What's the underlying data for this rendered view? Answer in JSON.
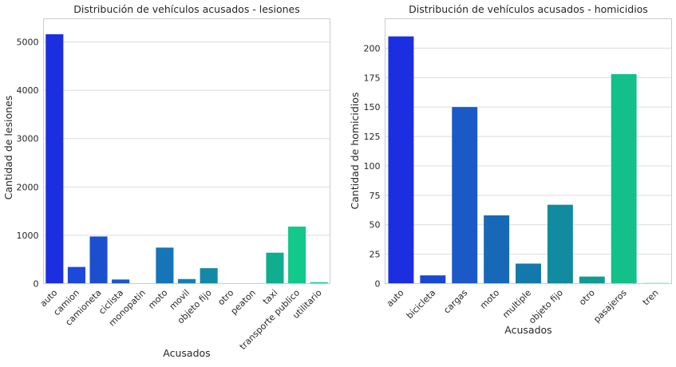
{
  "chart_data": [
    {
      "type": "bar",
      "title": "Distribución de vehículos acusados - lesiones",
      "xlabel": "Acusados",
      "ylabel": "Cantidad de lesiones",
      "ylim": [
        0,
        5480
      ],
      "yticks": [
        0,
        1000,
        2000,
        3000,
        4000,
        5000
      ],
      "grid": true,
      "categories": [
        "auto",
        "camion",
        "camioneta",
        "ciclista",
        "monopatin",
        "moto",
        "movil",
        "objeto fijo",
        "otro",
        "peaton",
        "taxi",
        "transporte publico",
        "utilitario"
      ],
      "values": [
        5160,
        345,
        975,
        85,
        5,
        745,
        95,
        320,
        4,
        4,
        640,
        1180,
        30
      ],
      "colors": [
        "#1b2fe0",
        "#1d48dc",
        "#1c4fcd",
        "#1a58c8",
        "#1964bd",
        "#1674b9",
        "#1580b3",
        "#128aa6",
        "#1396a1",
        "#11a297",
        "#10ad8f",
        "#13c88b",
        "#17ca84"
      ]
    },
    {
      "type": "bar",
      "title": "Distribución de vehículos acusados - homicidios",
      "xlabel": "Acusados",
      "ylabel": "Cantidad de homicidios",
      "ylim": [
        0,
        225
      ],
      "yticks": [
        0,
        25,
        50,
        75,
        100,
        125,
        150,
        175,
        200
      ],
      "grid": true,
      "categories": [
        "auto",
        "bicicleta",
        "cargas",
        "moto",
        "multiple",
        "objeto fijo",
        "otro",
        "pasajeros",
        "tren"
      ],
      "values": [
        210,
        7,
        150,
        58,
        17,
        67,
        6,
        178,
        0.5
      ],
      "colors": [
        "#1b2fe0",
        "#1a48d4",
        "#1a59c7",
        "#1769b8",
        "#1478ab",
        "#128aa0",
        "#109c94",
        "#13c08a",
        "#14cc86"
      ]
    }
  ]
}
